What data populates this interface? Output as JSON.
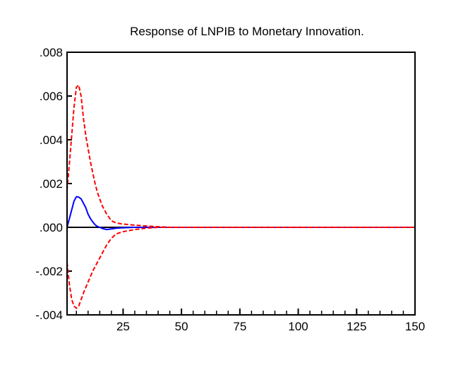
{
  "chart_data": {
    "type": "line",
    "title": "Response of LNPIB to Monetary Innovation.",
    "xlabel": "",
    "ylabel": "",
    "xlim": [
      1,
      150
    ],
    "ylim": [
      -0.004,
      0.008
    ],
    "x_ticks": [
      25,
      50,
      75,
      100,
      125,
      150
    ],
    "x_tick_labels": [
      "25",
      "50",
      "75",
      "100",
      "125",
      "150"
    ],
    "y_ticks": [
      -0.004,
      -0.002,
      0,
      0.002,
      0.004,
      0.006,
      0.008
    ],
    "y_tick_labels": [
      "-.004",
      "-.002",
      ".000",
      ".002",
      ".004",
      ".006",
      ".008"
    ],
    "grid": false,
    "legend": "none",
    "zero_line": true,
    "series": [
      {
        "role": "response",
        "color": "#0000ff",
        "style": "solid",
        "x": [
          1,
          2,
          3,
          4,
          5,
          6,
          7,
          8,
          9,
          10,
          11,
          12,
          13,
          14,
          15,
          16,
          18,
          20,
          22,
          25,
          30,
          40,
          150
        ],
        "values": [
          0.0,
          0.0004,
          0.0008,
          0.0012,
          0.0014,
          0.00138,
          0.0013,
          0.0011,
          0.0009,
          0.0006,
          0.0004,
          0.00025,
          0.00012,
          4e-05,
          0.0,
          -5e-05,
          -0.0001,
          -7e-05,
          -4e-05,
          -2e-05,
          0.0,
          0.0,
          0.0
        ]
      },
      {
        "role": "upper band",
        "color": "#ff0000",
        "style": "dashed",
        "x": [
          1,
          2,
          3,
          4,
          5,
          6,
          7,
          8,
          9,
          10,
          11,
          12,
          13,
          14,
          16,
          18,
          20,
          22,
          25,
          30,
          35,
          40,
          45,
          150
        ],
        "values": [
          0.0017,
          0.0029,
          0.0042,
          0.0055,
          0.0064,
          0.0065,
          0.006,
          0.005,
          0.0042,
          0.0036,
          0.003,
          0.0025,
          0.002,
          0.0016,
          0.001,
          0.0006,
          0.0003,
          0.0002,
          0.00015,
          0.0001,
          6e-05,
          3e-05,
          0.0,
          0.0
        ]
      },
      {
        "role": "lower band",
        "color": "#ff0000",
        "style": "dashed",
        "x": [
          1,
          2,
          3,
          4,
          5,
          6,
          7,
          8,
          10,
          12,
          14,
          16,
          18,
          20,
          22,
          25,
          30,
          35,
          40,
          150
        ],
        "values": [
          -0.0016,
          -0.0026,
          -0.0033,
          -0.0036,
          -0.0037,
          -0.0036,
          -0.0033,
          -0.003,
          -0.0025,
          -0.002,
          -0.0016,
          -0.0012,
          -0.0008,
          -0.0005,
          -0.0003,
          -0.0002,
          -0.0001,
          -4e-05,
          0.0,
          0.0
        ]
      }
    ]
  }
}
